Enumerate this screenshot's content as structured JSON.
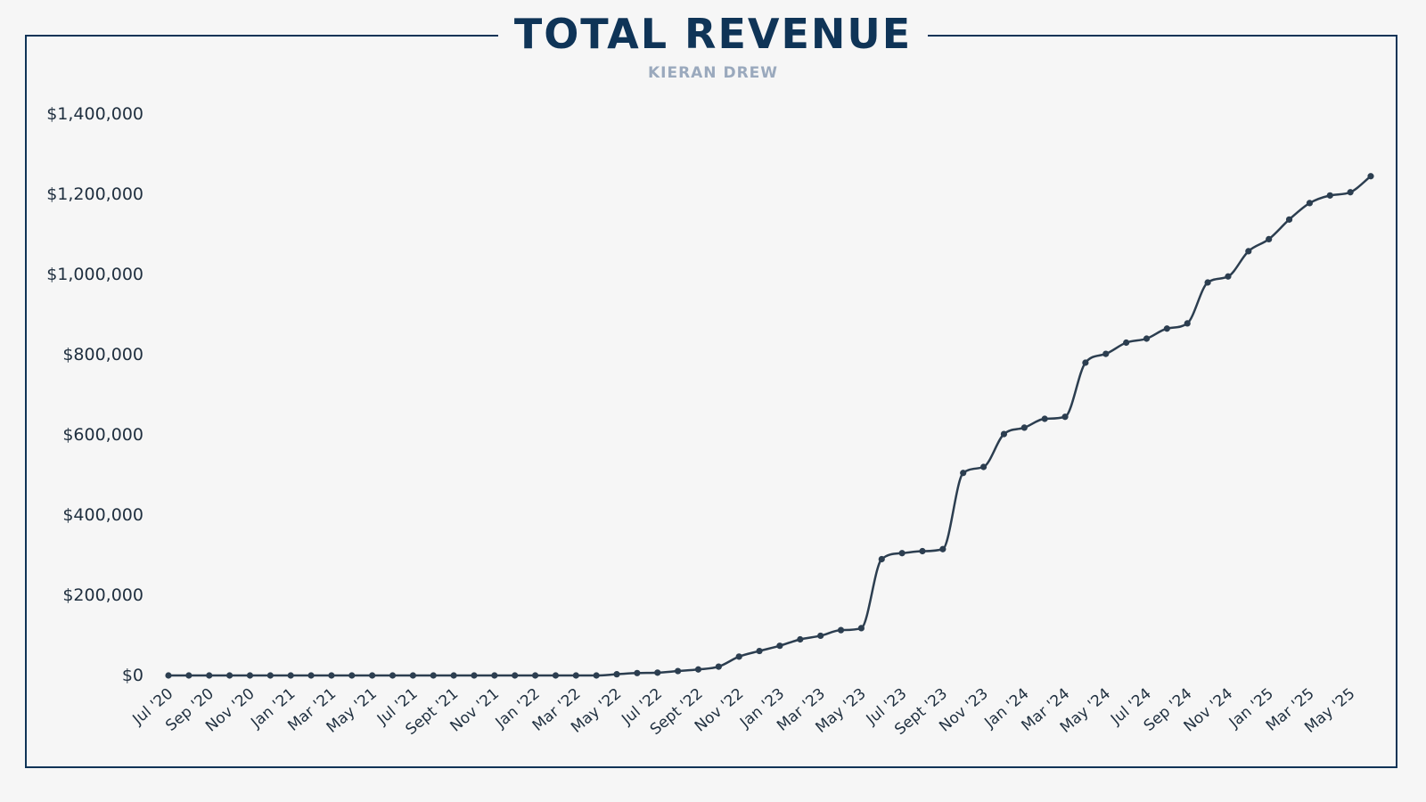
{
  "chart_data": {
    "type": "line",
    "title": "TOTAL REVENUE",
    "subtitle": "KIERAN DREW",
    "xlabel": "",
    "ylabel": "",
    "ylim": [
      0,
      1400000
    ],
    "y_ticks": [
      0,
      200000,
      400000,
      600000,
      800000,
      1000000,
      1200000,
      1400000
    ],
    "y_tick_labels": [
      "$0",
      "$200,000",
      "$400,000",
      "$600,000",
      "$800,000",
      "$1,000,000",
      "$1,200,000",
      "$1,400,000"
    ],
    "x_tick_labels": [
      "Jul '20",
      "Sep '20",
      "Nov '20",
      "Jan '21",
      "Mar '21",
      "May '21",
      "Jul '21",
      "Sept '21",
      "Nov '21",
      "Jan '22",
      "Mar '22",
      "May '22",
      "Jul '22",
      "Sept '22",
      "Nov '22",
      "Jan '23",
      "Mar '23",
      "May '23",
      "Jul '23",
      "Sept '23",
      "Nov '23",
      "Jan '24",
      "Mar '24",
      "May '24",
      "Jul '24",
      "Sep '24",
      "Nov '24",
      "Jan '25",
      "Mar '25",
      "May '25"
    ],
    "grid": false,
    "series": [
      {
        "values": [
          0,
          0,
          0,
          0,
          0,
          0,
          0,
          0,
          0,
          0,
          0,
          0,
          0,
          0,
          0,
          0,
          0,
          0,
          0,
          0,
          0,
          0,
          3000,
          6000,
          7000,
          11000,
          15000,
          22000,
          47000,
          61000,
          74000,
          90000,
          99000,
          113000,
          118000,
          290000,
          305000,
          310000,
          315000,
          505000,
          520000,
          602000,
          618000,
          640000,
          645000,
          780000,
          802000,
          830000,
          840000,
          865000,
          878000,
          980000,
          995000,
          1058000,
          1088000,
          1137000,
          1178000,
          1197000,
          1205000,
          1245000
        ]
      }
    ]
  },
  "colors": {
    "line": "#2c3e50",
    "title": "#0f3457",
    "subtitle": "#9aa9bd",
    "border": "#0f3457",
    "background": "#f6f6f6"
  }
}
